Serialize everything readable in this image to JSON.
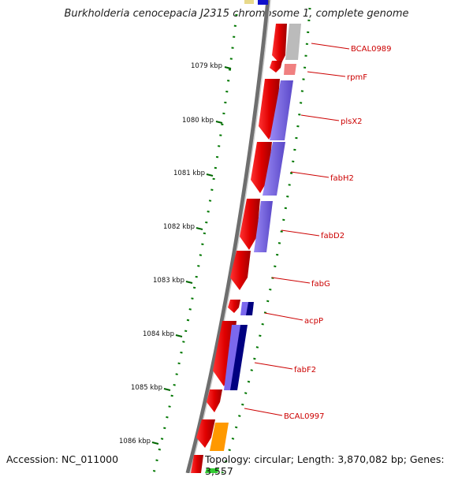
{
  "title": "Burkholderia cenocepacia J2315 chromosome 1, complete genome",
  "footer": {
    "accession": "Accession: NC_011000",
    "summary": "Topology: circular; Length: 3,870,082 bp; Genes: 3,557"
  },
  "ticks": [
    "1079 kbp",
    "1080 kbp",
    "1081 kbp",
    "1082 kbp",
    "1083 kbp",
    "1084 kbp",
    "1085 kbp",
    "1086 kbp"
  ],
  "genes": [
    "BCAL0989",
    "rpmF",
    "plsX2",
    "fabH2",
    "fabD2",
    "fabG",
    "acpP",
    "fabF2",
    "BCAL0997"
  ],
  "colors": {
    "cds": "#e00000",
    "cog_gray": "#bbbbbb",
    "cog_pink": "#f08080",
    "cog_purple": "#7b68ee",
    "cog_navy": "#000080",
    "cog_orange": "#ff9900",
    "cog_green": "#33cc33",
    "gc_dots": "#007700",
    "backbone": "#777777",
    "label": "#cc0000"
  }
}
